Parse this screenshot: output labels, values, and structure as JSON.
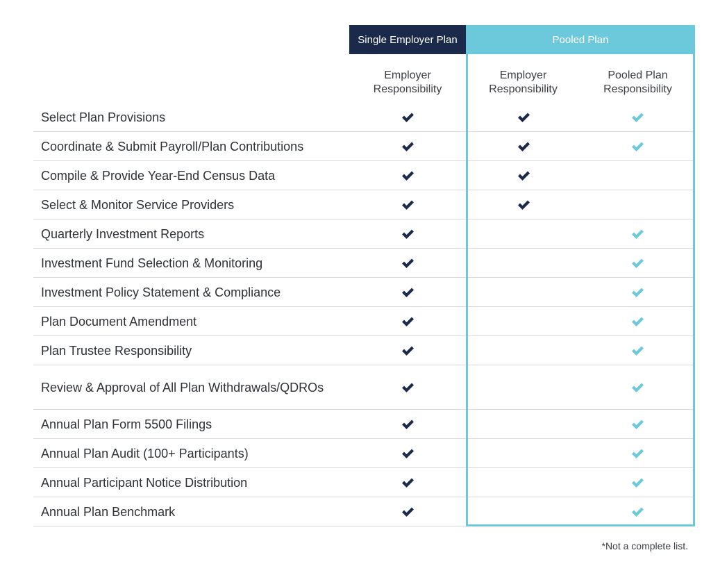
{
  "headers": {
    "single_group": "Single Employer Plan",
    "pooled_group": "Pooled Plan",
    "col_single_employer": "Employer Responsibility",
    "col_pooled_employer": "Employer Responsibility",
    "col_pooled_plan": "Pooled Plan Responsibility"
  },
  "colors": {
    "navy": "#1b2a4a",
    "teal": "#6cc9dc"
  },
  "icons": {
    "check": "checkmark-icon"
  },
  "rows": [
    {
      "label": "Select Plan Provisions",
      "single": true,
      "pooled_employer": true,
      "pooled_plan": true
    },
    {
      "label": "Coordinate & Submit Payroll/Plan Contributions",
      "single": true,
      "pooled_employer": true,
      "pooled_plan": true
    },
    {
      "label": "Compile & Provide Year-End Census Data",
      "single": true,
      "pooled_employer": true,
      "pooled_plan": false
    },
    {
      "label": "Select & Monitor Service Providers",
      "single": true,
      "pooled_employer": true,
      "pooled_plan": false
    },
    {
      "label": "Quarterly Investment Reports",
      "single": true,
      "pooled_employer": false,
      "pooled_plan": true
    },
    {
      "label": "Investment Fund Selection & Monitoring",
      "single": true,
      "pooled_employer": false,
      "pooled_plan": true
    },
    {
      "label": "Investment Policy Statement & Compliance",
      "single": true,
      "pooled_employer": false,
      "pooled_plan": true
    },
    {
      "label": "Plan Document Amendment",
      "single": true,
      "pooled_employer": false,
      "pooled_plan": true
    },
    {
      "label": "Plan Trustee Responsibility",
      "single": true,
      "pooled_employer": false,
      "pooled_plan": true
    },
    {
      "label": "Review & Approval of All Plan Withdrawals/QDROs",
      "single": true,
      "pooled_employer": false,
      "pooled_plan": true
    },
    {
      "label": "Annual Plan Form 5500 Filings",
      "single": true,
      "pooled_employer": false,
      "pooled_plan": true
    },
    {
      "label": "Annual Plan Audit (100+ Participants)",
      "single": true,
      "pooled_employer": false,
      "pooled_plan": true
    },
    {
      "label": "Annual Participant Notice Distribution",
      "single": true,
      "pooled_employer": false,
      "pooled_plan": true
    },
    {
      "label": "Annual Plan Benchmark",
      "single": true,
      "pooled_employer": false,
      "pooled_plan": true
    }
  ],
  "footnote": "*Not a complete list."
}
